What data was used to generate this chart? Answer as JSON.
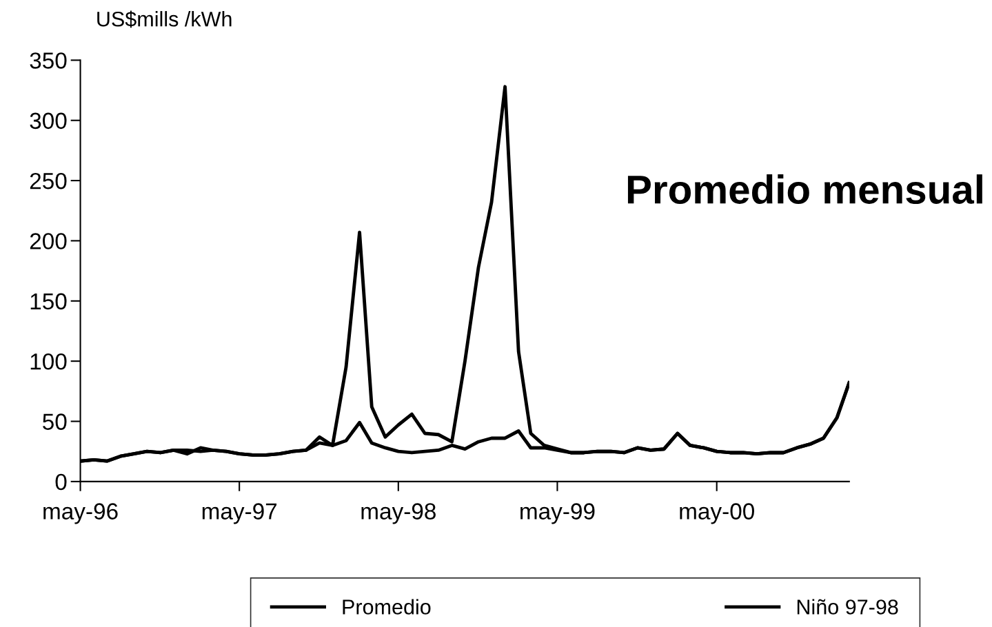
{
  "chart_data": {
    "type": "line",
    "title": "Promedio mensual",
    "ylabel": "US$mills /kWh",
    "x": [
      "1996-05",
      "1996-06",
      "1996-07",
      "1996-08",
      "1996-09",
      "1996-10",
      "1996-11",
      "1996-12",
      "1997-01",
      "1997-02",
      "1997-03",
      "1997-04",
      "1997-05",
      "1997-06",
      "1997-07",
      "1997-08",
      "1997-09",
      "1997-10",
      "1997-11",
      "1997-12",
      "1998-01",
      "1998-02",
      "1998-03",
      "1998-04",
      "1998-05",
      "1998-06",
      "1998-07",
      "1998-08",
      "1998-09",
      "1998-10",
      "1998-11",
      "1998-12",
      "1999-01",
      "1999-02",
      "1999-03",
      "1999-04",
      "1999-05",
      "1999-06",
      "1999-07",
      "1999-08",
      "1999-09",
      "1999-10",
      "1999-11",
      "1999-12",
      "2000-01",
      "2000-02",
      "2000-03",
      "2000-04",
      "2000-05",
      "2000-06",
      "2000-07",
      "2000-08",
      "2000-09",
      "2000-10",
      "2000-11",
      "2000-12",
      "2001-01",
      "2001-02",
      "2001-03"
    ],
    "series": [
      {
        "name": "Promedio",
        "color": "#000000",
        "values": [
          17,
          18,
          17,
          21,
          23,
          25,
          24,
          26,
          23,
          28,
          26,
          25,
          23,
          22,
          22,
          23,
          25,
          26,
          37,
          30,
          95,
          207,
          62,
          37,
          47,
          56,
          40,
          39,
          33,
          100,
          178,
          232,
          328,
          108,
          40,
          30,
          27,
          24,
          24,
          25,
          25,
          24,
          28,
          26,
          27,
          40,
          30,
          28,
          25,
          24,
          24,
          23,
          24,
          24,
          28,
          31,
          36,
          53,
          82
        ]
      },
      {
        "name": "Niño 97-98",
        "color": "#000000",
        "values": [
          17,
          18,
          17,
          21,
          23,
          25,
          24,
          26,
          26,
          25,
          26,
          25,
          23,
          22,
          22,
          23,
          25,
          26,
          32,
          30,
          34,
          49,
          32,
          28,
          25,
          24,
          25,
          26,
          30,
          27,
          33,
          36,
          36,
          42,
          28,
          28,
          26,
          24,
          24,
          25,
          25,
          24,
          28,
          26,
          27,
          40,
          30,
          28,
          25,
          24,
          24,
          23,
          24,
          24,
          28,
          31,
          36,
          53,
          82
        ]
      }
    ],
    "xlim": [
      "1996-05",
      "2001-03"
    ],
    "xticks": [
      {
        "value": "1996-05",
        "label": "may-96"
      },
      {
        "value": "1997-05",
        "label": "may-97"
      },
      {
        "value": "1998-05",
        "label": "may-98"
      },
      {
        "value": "1999-05",
        "label": "may-99"
      },
      {
        "value": "2000-05",
        "label": "may-00"
      }
    ],
    "ylim": [
      0,
      350
    ],
    "yticks": [
      0,
      50,
      100,
      150,
      200,
      250,
      300,
      350
    ],
    "grid": false,
    "legend": "bottom",
    "marker": "none",
    "line_style": "solid"
  }
}
